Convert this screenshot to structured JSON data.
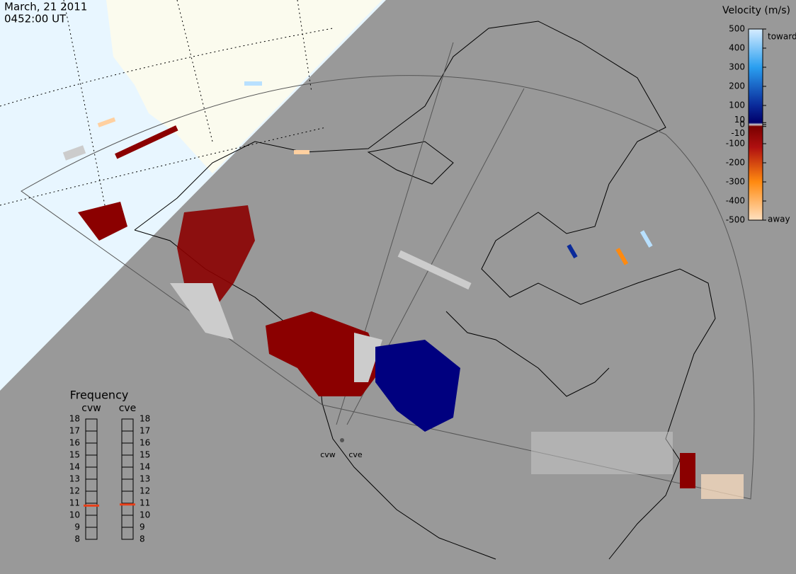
{
  "header": {
    "date": "March, 21 2011",
    "time": "0452:00 UT"
  },
  "colorbar": {
    "title": "Velocity (m/s)",
    "lim": [
      -500,
      500
    ],
    "ticks": [
      500,
      400,
      300,
      200,
      100,
      10,
      0,
      -10,
      -100,
      -200,
      -300,
      -400,
      -500
    ],
    "top_label": "toward",
    "bottom_label": "away"
  },
  "frequency": {
    "title": "Frequency",
    "lim": [
      8,
      18
    ],
    "ticks": [
      8,
      9,
      10,
      11,
      12,
      13,
      14,
      15,
      16,
      17,
      18
    ],
    "radars": [
      {
        "name": "cvw",
        "value": 10.8
      },
      {
        "name": "cve",
        "value": 10.9
      }
    ]
  },
  "stations": [
    "cvw",
    "cve"
  ]
}
